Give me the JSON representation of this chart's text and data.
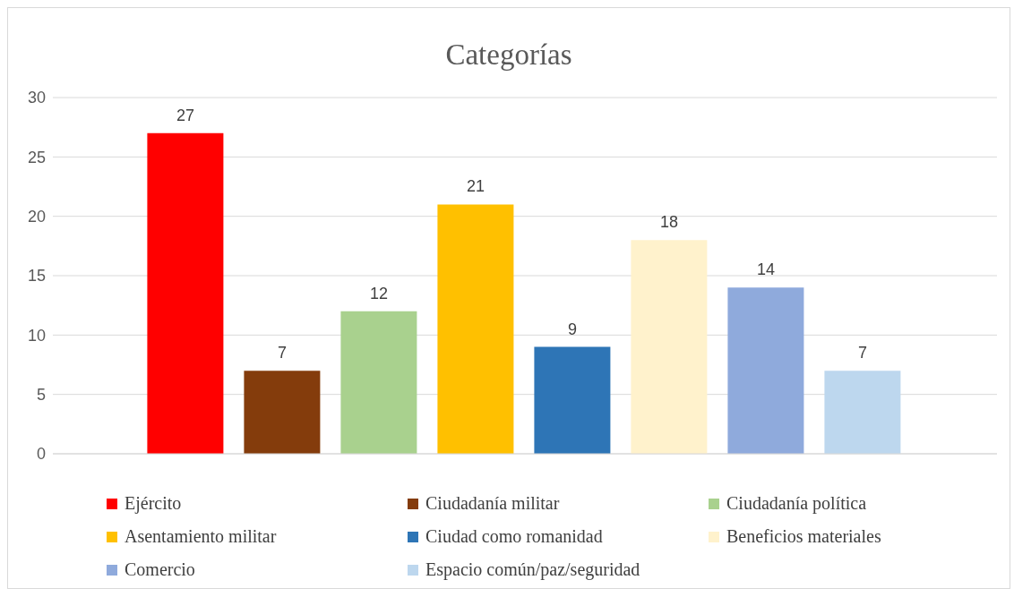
{
  "chart_data": {
    "type": "bar",
    "title": "Categorías",
    "categories": [
      null
    ],
    "series": [
      {
        "name": "Ejército",
        "color": "#ff0000",
        "values": [
          27
        ]
      },
      {
        "name": "Ciudadanía militar",
        "color": "#843c0c",
        "values": [
          7
        ]
      },
      {
        "name": "Ciudadanía política",
        "color": "#a9d18e",
        "values": [
          12
        ]
      },
      {
        "name": "Asentamiento militar",
        "color": "#ffc000",
        "values": [
          21
        ]
      },
      {
        "name": "Ciudad como romanidad",
        "color": "#2e75b6",
        "values": [
          9
        ]
      },
      {
        "name": "Beneficios materiales",
        "color": "#fff2cc",
        "values": [
          18
        ]
      },
      {
        "name": "Comercio",
        "color": "#8faadc",
        "values": [
          14
        ]
      },
      {
        "name": "Espacio común/paz/seguridad",
        "color": "#bdd7ee",
        "values": [
          7
        ]
      }
    ],
    "ylim": [
      0,
      30
    ],
    "yticks": [
      0,
      5,
      10,
      15,
      20,
      25,
      30
    ],
    "grid": "y",
    "data_labels": true,
    "legend": "bottom"
  }
}
